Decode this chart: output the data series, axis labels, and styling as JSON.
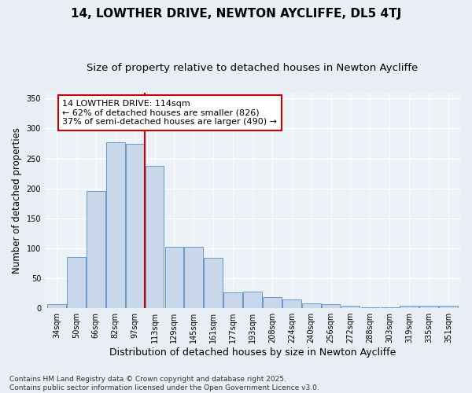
{
  "title1": "14, LOWTHER DRIVE, NEWTON AYCLIFFE, DL5 4TJ",
  "title2": "Size of property relative to detached houses in Newton Aycliffe",
  "xlabel": "Distribution of detached houses by size in Newton Aycliffe",
  "ylabel": "Number of detached properties",
  "categories": [
    "34sqm",
    "50sqm",
    "66sqm",
    "82sqm",
    "97sqm",
    "113sqm",
    "129sqm",
    "145sqm",
    "161sqm",
    "177sqm",
    "193sqm",
    "208sqm",
    "224sqm",
    "240sqm",
    "256sqm",
    "272sqm",
    "288sqm",
    "303sqm",
    "319sqm",
    "335sqm",
    "351sqm"
  ],
  "values": [
    7,
    85,
    196,
    277,
    275,
    237,
    103,
    103,
    84,
    27,
    28,
    18,
    15,
    8,
    7,
    4,
    1,
    1,
    4,
    4,
    4
  ],
  "bar_color": "#c8d8ea",
  "bar_edge_color": "#6699cc",
  "vline_x": 4.5,
  "vline_color": "#cc0000",
  "annotation_text": "14 LOWTHER DRIVE: 114sqm\n← 62% of detached houses are smaller (826)\n37% of semi-detached houses are larger (490) →",
  "annotation_box_color": "#ffffff",
  "annotation_box_edge_color": "#cc0000",
  "ylim": [
    0,
    360
  ],
  "yticks": [
    0,
    50,
    100,
    150,
    200,
    250,
    300,
    350
  ],
  "background_color": "#e8eef4",
  "plot_background": "#edf2f8",
  "grid_color": "#ffffff",
  "footnote": "Contains HM Land Registry data © Crown copyright and database right 2025.\nContains public sector information licensed under the Open Government Licence v3.0.",
  "title1_fontsize": 11,
  "title2_fontsize": 9.5,
  "xlabel_fontsize": 9,
  "ylabel_fontsize": 8.5,
  "tick_fontsize": 7,
  "annotation_fontsize": 8,
  "footnote_fontsize": 6.5
}
